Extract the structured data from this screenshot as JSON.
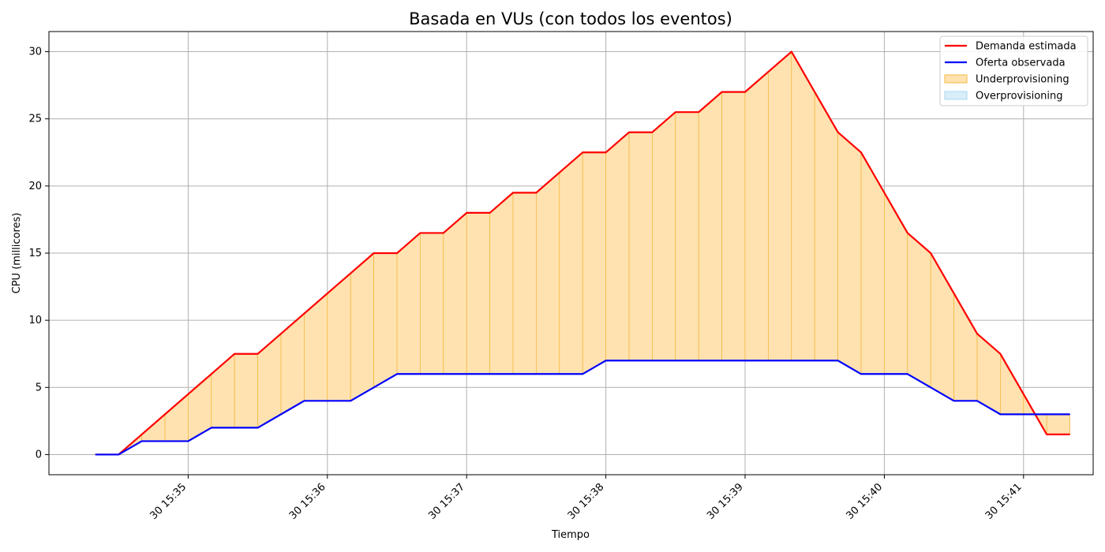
{
  "chart_data": {
    "type": "line",
    "title": "Basada en VUs (con todos los eventos)",
    "xlabel": "Tiempo",
    "ylabel": "CPU (millicores)",
    "x_unit": "seconds after 15:34:00",
    "x_ticks": [
      {
        "value": 60,
        "label": "30 15:35"
      },
      {
        "value": 120,
        "label": "30 15:36"
      },
      {
        "value": 180,
        "label": "30 15:37"
      },
      {
        "value": 240,
        "label": "30 15:38"
      },
      {
        "value": 300,
        "label": "30 15:39"
      },
      {
        "value": 360,
        "label": "30 15:40"
      },
      {
        "value": 420,
        "label": "30 15:41"
      }
    ],
    "y_ticks": [
      0,
      5,
      10,
      15,
      20,
      25,
      30
    ],
    "xlim": [
      0,
      450
    ],
    "ylim": [
      -1.5,
      31.5
    ],
    "grid": true,
    "legend_position": "top-right",
    "x": [
      20,
      30,
      40,
      50,
      60,
      70,
      80,
      90,
      100,
      110,
      120,
      130,
      140,
      150,
      160,
      170,
      180,
      190,
      200,
      210,
      220,
      230,
      240,
      250,
      260,
      270,
      280,
      290,
      300,
      310,
      320,
      330,
      340,
      350,
      360,
      370,
      380,
      390,
      400,
      410,
      420,
      430,
      440
    ],
    "series": [
      {
        "name": "Demanda estimada",
        "color": "#ff0000",
        "values": [
          0,
          0,
          1.5,
          3,
          4.5,
          6,
          7.5,
          7.5,
          9,
          10.5,
          12,
          13.5,
          15,
          15,
          16.5,
          16.5,
          18,
          18,
          19.5,
          19.5,
          21,
          22.5,
          22.5,
          24,
          24,
          25.5,
          25.5,
          27,
          27,
          28.5,
          30,
          27,
          24,
          22.5,
          19.5,
          16.5,
          15,
          12,
          9,
          7.5,
          4.5,
          1.5,
          1.5
        ]
      },
      {
        "name": "Oferta observada",
        "color": "#0000ff",
        "values": [
          0,
          0,
          1,
          1,
          1,
          2,
          2,
          2,
          3,
          4,
          4,
          4,
          5,
          6,
          6,
          6,
          6,
          6,
          6,
          6,
          6,
          6,
          7,
          7,
          7,
          7,
          7,
          7,
          7,
          7,
          7,
          7,
          7,
          6,
          6,
          6,
          5,
          4,
          4,
          3,
          3,
          3,
          3
        ]
      }
    ],
    "areas": [
      {
        "name": "Underprovisioning",
        "color": "#ffe2b0",
        "edge": "#f5b942"
      },
      {
        "name": "Overprovisioning",
        "color": "#d8eef8",
        "edge": "#a8d8f0"
      }
    ]
  }
}
